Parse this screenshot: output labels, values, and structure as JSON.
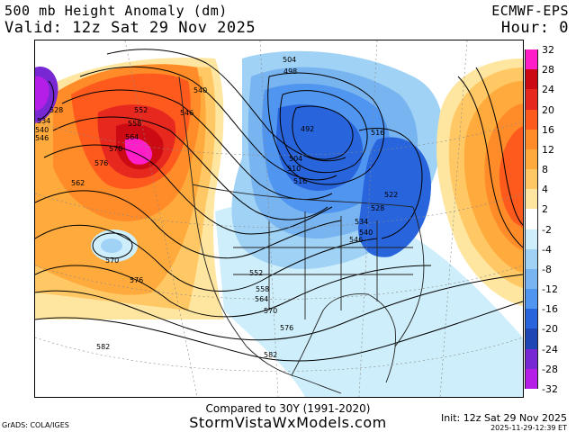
{
  "header": {
    "title": "500 mb Height Anomaly (dm)",
    "valid": "Valid: 12z Sat 29 Nov 2025",
    "source": "ECMWF-EPS",
    "hour": "Hour: 0"
  },
  "colorbar": {
    "labels": [
      "32",
      "28",
      "24",
      "20",
      "16",
      "12",
      "8",
      "4",
      "2",
      "-2",
      "-4",
      "-8",
      "-12",
      "-16",
      "-20",
      "-24",
      "-28",
      "-32"
    ],
    "colors": [
      "#ff1ec8",
      "#cc0a14",
      "#e6281e",
      "#ff5a1e",
      "#ff8c28",
      "#ffaa3c",
      "#ffc864",
      "#ffe6a0",
      "#ffffff",
      "#cdeefa",
      "#a0d2f5",
      "#78b4f0",
      "#5096f0",
      "#2864dc",
      "#1e46b4",
      "#7828d2",
      "#b41ee6"
    ]
  },
  "contour_labels": [
    "504",
    "498",
    "540",
    "528",
    "534",
    "540",
    "546",
    "552",
    "558",
    "546",
    "564",
    "570",
    "576",
    "492",
    "516",
    "504",
    "510",
    "516",
    "562",
    "522",
    "528",
    "534",
    "540",
    "546",
    "570",
    "576",
    "552",
    "558",
    "564",
    "570",
    "576",
    "582",
    "582"
  ],
  "footer": {
    "compared": "Compared to 30Y (1991-2020)",
    "site": "StormVistaWxModels.com",
    "grads": "GrADS: COLA/IGES",
    "init": "Init: 12z Sat 29 Nov 2025",
    "stamp": "2025-11-29-12:39 ET"
  }
}
